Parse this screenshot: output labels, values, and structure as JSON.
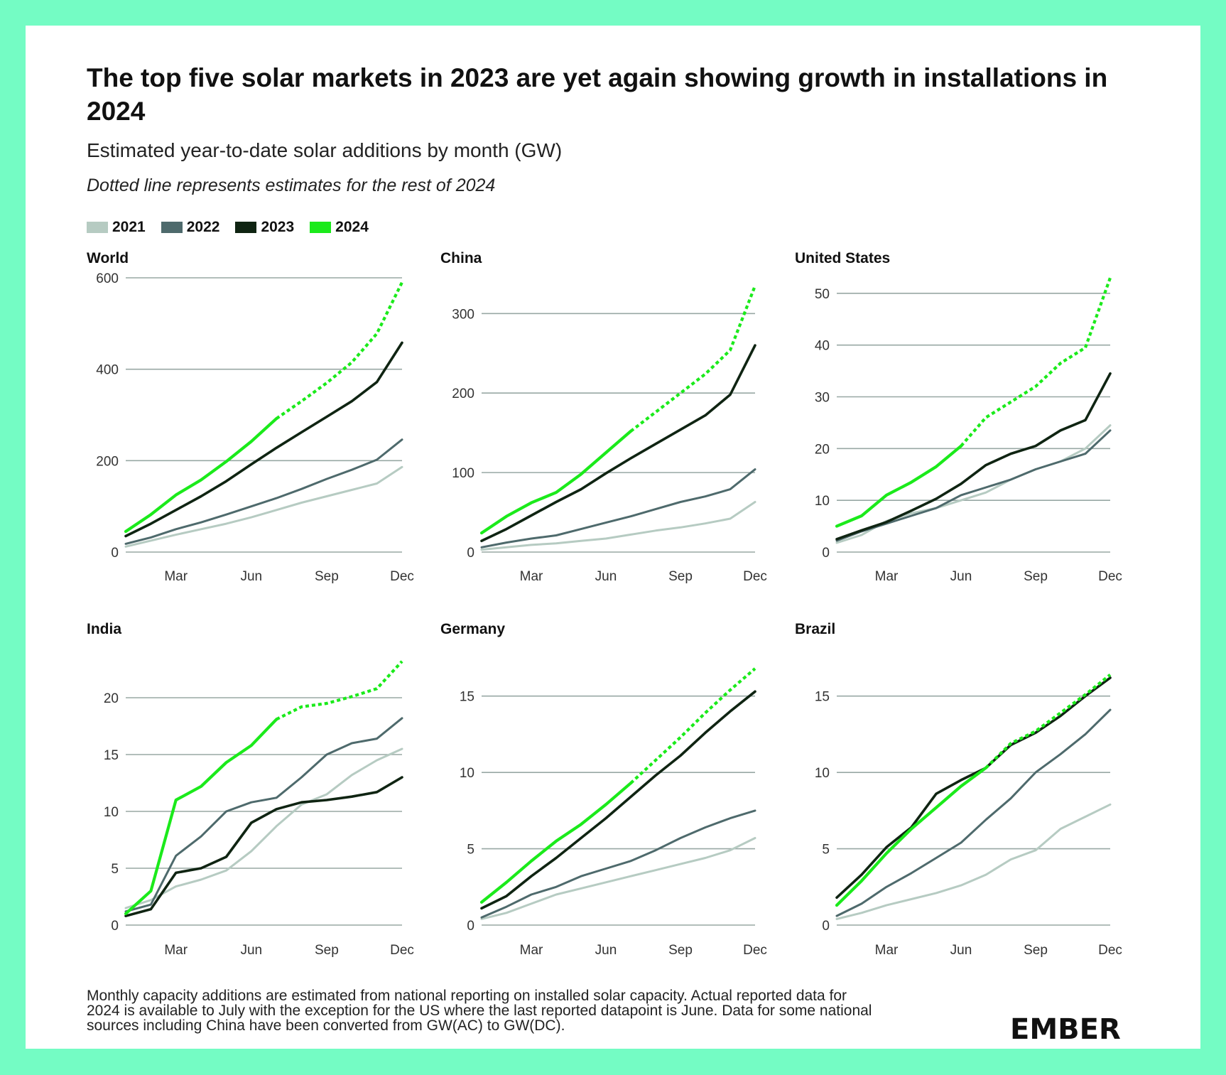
{
  "title": "The top five solar markets in 2023 are yet again showing growth in installations in 2024",
  "subtitle": "Estimated year-to-date solar additions by month (GW)",
  "note": "Dotted line represents estimates for the rest of 2024",
  "legend": [
    {
      "label": "2021",
      "color": "#b6cbc2"
    },
    {
      "label": "2022",
      "color": "#4e6a6c"
    },
    {
      "label": "2023",
      "color": "#0f2412"
    },
    {
      "label": "2024",
      "color": "#1bea1b"
    }
  ],
  "footnote": [
    "Monthly capacity additions are estimated from national reporting on installed solar capacity. Actual reported data for",
    "2024 is available to July with the exception for the US where the last reported datapoint is June. Data for some national",
    "sources including China have been converted from GW(AC) to GW(DC)."
  ],
  "logo": "EMBER",
  "chart_data": [
    {
      "type": "line",
      "title": "World",
      "categories": [
        "Jan",
        "Feb",
        "Mar",
        "Apr",
        "May",
        "Jun",
        "Jul",
        "Aug",
        "Sep",
        "Oct",
        "Nov",
        "Dec"
      ],
      "tick_labels": [
        "Mar",
        "Jun",
        "Sep",
        "Dec"
      ],
      "yticks": [
        0,
        200,
        400,
        600
      ],
      "ylim": [
        0,
        600
      ],
      "series": [
        {
          "name": "2021",
          "values": [
            12,
            25,
            38,
            50,
            62,
            76,
            92,
            108,
            122,
            136,
            150,
            186
          ]
        },
        {
          "name": "2022",
          "values": [
            18,
            32,
            50,
            65,
            82,
            100,
            118,
            138,
            160,
            180,
            202,
            246
          ]
        },
        {
          "name": "2023",
          "values": [
            35,
            62,
            92,
            122,
            155,
            192,
            228,
            262,
            296,
            330,
            372,
            458
          ]
        },
        {
          "name": "2024",
          "values": [
            45,
            82,
            125,
            158,
            198,
            242,
            292,
            330,
            370,
            415,
            478,
            590
          ],
          "actual_through": "Jul"
        }
      ]
    },
    {
      "type": "line",
      "title": "China",
      "categories": [
        "Jan",
        "Feb",
        "Mar",
        "Apr",
        "May",
        "Jun",
        "Jul",
        "Aug",
        "Sep",
        "Oct",
        "Nov",
        "Dec"
      ],
      "tick_labels": [
        "Mar",
        "Jun",
        "Sep",
        "Dec"
      ],
      "yticks": [
        0,
        100,
        200,
        300
      ],
      "ylim": [
        0,
        345
      ],
      "series": [
        {
          "name": "2021",
          "values": [
            3,
            6,
            9,
            11,
            14,
            17,
            22,
            27,
            31,
            36,
            42,
            63
          ]
        },
        {
          "name": "2022",
          "values": [
            6,
            12,
            17,
            21,
            29,
            37,
            45,
            54,
            63,
            70,
            79,
            104
          ]
        },
        {
          "name": "2023",
          "values": [
            14,
            29,
            46,
            63,
            79,
            99,
            118,
            136,
            154,
            172,
            198,
            260
          ]
        },
        {
          "name": "2024",
          "values": [
            24,
            45,
            62,
            75,
            98,
            125,
            152,
            176,
            200,
            224,
            254,
            335
          ],
          "actual_through": "Jul"
        }
      ]
    },
    {
      "type": "line",
      "title": "United States",
      "categories": [
        "Jan",
        "Feb",
        "Mar",
        "Apr",
        "May",
        "Jun",
        "Jul",
        "Aug",
        "Sep",
        "Oct",
        "Nov",
        "Dec"
      ],
      "tick_labels": [
        "Mar",
        "Jun",
        "Sep",
        "Dec"
      ],
      "yticks": [
        0,
        10,
        20,
        30,
        40,
        50
      ],
      "ylim": [
        0,
        53
      ],
      "series": [
        {
          "name": "2021",
          "values": [
            1.8,
            3.3,
            6,
            7.5,
            8.5,
            10,
            11.5,
            14,
            16,
            17.5,
            20,
            24.5
          ]
        },
        {
          "name": "2022",
          "values": [
            2.2,
            4,
            5.5,
            7,
            8.5,
            11,
            12.5,
            14,
            16,
            17.5,
            19,
            23.5
          ]
        },
        {
          "name": "2023",
          "values": [
            2.5,
            4.2,
            5.8,
            8,
            10.3,
            13.2,
            16.8,
            19,
            20.5,
            23.5,
            25.5,
            34.5
          ]
        },
        {
          "name": "2024",
          "values": [
            5,
            7,
            11,
            13.5,
            16.5,
            20.5,
            26,
            29,
            32,
            36.5,
            39.5,
            53
          ],
          "actual_through": "Jun"
        }
      ]
    },
    {
      "type": "line",
      "title": "India",
      "categories": [
        "Jan",
        "Feb",
        "Mar",
        "Apr",
        "May",
        "Jun",
        "Jul",
        "Aug",
        "Sep",
        "Oct",
        "Nov",
        "Dec"
      ],
      "tick_labels": [
        "Mar",
        "Jun",
        "Sep",
        "Dec"
      ],
      "yticks": [
        0,
        5,
        10,
        15,
        20
      ],
      "ylim": [
        0,
        23.5
      ],
      "series": [
        {
          "name": "2021",
          "values": [
            1.5,
            2.2,
            3.4,
            4,
            4.8,
            6.5,
            8.7,
            10.6,
            11.5,
            13.2,
            14.5,
            15.5
          ]
        },
        {
          "name": "2022",
          "values": [
            1.2,
            1.8,
            6.1,
            7.8,
            10,
            10.8,
            11.2,
            13,
            15,
            16,
            16.4,
            18.2
          ]
        },
        {
          "name": "2023",
          "values": [
            0.8,
            1.4,
            4.6,
            5,
            6,
            9,
            10.2,
            10.8,
            11,
            11.3,
            11.7,
            13
          ]
        },
        {
          "name": "2024",
          "values": [
            1,
            3,
            11,
            12.2,
            14.3,
            15.8,
            18.1,
            19.2,
            19.5,
            20.1,
            20.8,
            23.2
          ],
          "actual_through": "Jul"
        }
      ]
    },
    {
      "type": "line",
      "title": "Germany",
      "categories": [
        "Jan",
        "Feb",
        "Mar",
        "Apr",
        "May",
        "Jun",
        "Jul",
        "Aug",
        "Sep",
        "Oct",
        "Nov",
        "Dec"
      ],
      "tick_labels": [
        "Mar",
        "Jun",
        "Sep",
        "Dec"
      ],
      "yticks": [
        0,
        5,
        10,
        15
      ],
      "ylim": [
        0,
        17.5
      ],
      "series": [
        {
          "name": "2021",
          "values": [
            0.4,
            0.8,
            1.4,
            2,
            2.4,
            2.8,
            3.2,
            3.6,
            4,
            4.4,
            4.9,
            5.7
          ]
        },
        {
          "name": "2022",
          "values": [
            0.5,
            1.2,
            2,
            2.5,
            3.2,
            3.7,
            4.2,
            4.9,
            5.7,
            6.4,
            7,
            7.5
          ]
        },
        {
          "name": "2023",
          "values": [
            1.1,
            1.9,
            3.2,
            4.4,
            5.7,
            7,
            8.4,
            9.8,
            11.1,
            12.6,
            14,
            15.3
          ]
        },
        {
          "name": "2024",
          "values": [
            1.5,
            2.8,
            4.2,
            5.5,
            6.6,
            7.9,
            9.3,
            10.8,
            12.3,
            13.9,
            15.4,
            16.8
          ],
          "actual_through": "Jul"
        }
      ]
    },
    {
      "type": "line",
      "title": "Brazil",
      "categories": [
        "Jan",
        "Feb",
        "Mar",
        "Apr",
        "May",
        "Jun",
        "Jul",
        "Aug",
        "Sep",
        "Oct",
        "Nov",
        "Dec"
      ],
      "tick_labels": [
        "Mar",
        "Jun",
        "Sep",
        "Dec"
      ],
      "yticks": [
        0,
        5,
        10,
        15
      ],
      "ylim": [
        0,
        17.5
      ],
      "series": [
        {
          "name": "2021",
          "values": [
            0.4,
            0.8,
            1.3,
            1.7,
            2.1,
            2.6,
            3.3,
            4.3,
            4.9,
            6.3,
            7.1,
            7.9
          ]
        },
        {
          "name": "2022",
          "values": [
            0.6,
            1.4,
            2.5,
            3.4,
            4.4,
            5.4,
            6.9,
            8.3,
            10,
            11.2,
            12.5,
            14.1
          ]
        },
        {
          "name": "2023",
          "values": [
            1.8,
            3.3,
            5.1,
            6.4,
            8.6,
            9.5,
            10.3,
            11.8,
            12.6,
            13.7,
            15,
            16.2
          ]
        },
        {
          "name": "2024",
          "values": [
            1.3,
            2.9,
            4.7,
            6.3,
            7.7,
            9.1,
            10.3,
            11.9,
            12.7,
            13.9,
            15.1,
            16.4
          ],
          "actual_through": "Jul"
        }
      ]
    }
  ]
}
